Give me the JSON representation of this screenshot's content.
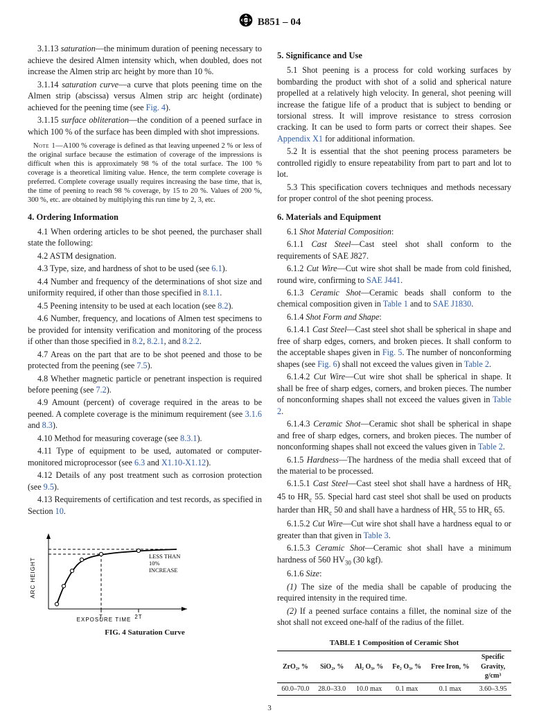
{
  "header": {
    "designation": "B851 – 04"
  },
  "left": {
    "p_3_1_13": {
      "num": "3.1.13 ",
      "term": "saturation",
      "body": "—the minimum duration of peening necessary to achieve the desired Almen intensity which, when doubled, does not increase the Almen strip arc height by more than 10 %."
    },
    "p_3_1_14": {
      "num": "3.1.14 ",
      "term": "saturation curve",
      "body": "—a curve that plots peening time on the Almen strip (abscissa) versus Almen strip arc height (ordinate) achieved for the peening time (see ",
      "link": "Fig. 4",
      "tail": ")."
    },
    "p_3_1_15": {
      "num": "3.1.15 ",
      "term": "surface obliteration",
      "body": "—the condition of a peened surface in which 100 % of the surface has been dimpled with shot impressions."
    },
    "note1": {
      "label": "Note 1—",
      "body": "A100 % coverage is defined as that leaving unpeened 2 % or less of the original surface because the estimation of coverage of the impressions is difficult when this is approximately 98 % of the total surface. The 100 % coverage is a theoretical limiting value. Hence, the term complete coverage is preferred. Complete coverage usually requires increasing the base time, that is, the time of peening to reach 98 % coverage, by 15 to 20 %. Values of 200 %, 300 %, etc. are obtained by multiplying this run time by 2, 3, etc."
    },
    "h4": "4.  Ordering Information",
    "p4_1": "4.1 When ordering articles to be shot peened, the purchaser shall state the following:",
    "p4_2": "4.2 ASTM designation.",
    "p4_3": {
      "a": "4.3 Type, size, and hardness of shot to be used (see ",
      "l": "6.1",
      "b": ")."
    },
    "p4_4": {
      "a": "4.4 Number and frequency of the determinations of shot size and uniformity required, if other than those specified in ",
      "l": "8.1.1",
      "b": "."
    },
    "p4_5": {
      "a": "4.5 Peening intensity to be used at each location (see ",
      "l": "8.2",
      "b": ")."
    },
    "p4_6": {
      "a": "4.6 Number, frequency, and locations of Almen test specimens to be provided for intensity verification and monitoring of the process if other than those specified in ",
      "l1": "8.2",
      "c1": ", ",
      "l2": "8.2.1",
      "c2": ", and ",
      "l3": "8.2.2",
      "b": "."
    },
    "p4_7": {
      "a": "4.7 Areas on the part that are to be shot peened and those to be protected from the peening (see ",
      "l": "7.5",
      "b": ")."
    },
    "p4_8": {
      "a": "4.8 Whether magnetic particle or penetrant inspection is required before peening (see ",
      "l": "7.2",
      "b": ")."
    },
    "p4_9": {
      "a": "4.9 Amount (percent) of coverage required in the areas to be peened. A complete coverage is the minimum requirement (see ",
      "l1": "3.1.6",
      "c": " and ",
      "l2": "8.3",
      "b": ")."
    },
    "p4_10": {
      "a": "4.10 Method for measuring coverage (see ",
      "l": "8.3.1",
      "b": ")."
    },
    "p4_11": {
      "a": "4.11 Type of equipment to be used, automated or computer-monitored microprocessor (see ",
      "l1": "6.3",
      "c": " and ",
      "l2": "X1.10-X1.12",
      "b": ")."
    },
    "p4_12": {
      "a": "4.12 Details of any post treatment such as corrosion protection (see ",
      "l": "9.5",
      "b": ")."
    },
    "p4_13": {
      "a": "4.13 Requirements of certification and test records, as specified in Section ",
      "l": "10",
      "b": "."
    },
    "fig": {
      "y_label": "ARC HEIGHT",
      "x_label": "EXPOSURE TIME",
      "tick_T": "T",
      "tick_2T": "2T",
      "annot": "LESS THAN\n10%\nINCREASE",
      "caption": "FIG. 4 Saturation Curve",
      "curve_color": "#000000",
      "bg": "#ffffff",
      "points_x": [
        12,
        22,
        34,
        48,
        76,
        130,
        185
      ],
      "points_y": [
        98,
        72,
        50,
        34,
        26,
        21,
        19
      ]
    }
  },
  "right": {
    "h5": "5.  Significance and Use",
    "p5_1": {
      "a": "5.1 Shot peening is a process for cold working surfaces by bombarding the product with shot of a solid and spherical nature propelled at a relatively high velocity. In general, shot peening will increase the fatigue life of a product that is subject to bending or torsional stress. It will improve resistance to stress corrosion cracking. It can be used to form parts or correct their shapes. See ",
      "l": "Appendix X1",
      "b": " for additional information."
    },
    "p5_2": "5.2 It is essential that the shot peening process parameters be controlled rigidly to ensure repeatability from part to part and lot to lot.",
    "p5_3": "5.3 This specification covers techniques and methods necessary for proper control of the shot peening process.",
    "h6": "6.  Materials and Equipment",
    "p6_1": {
      "num": "6.1 ",
      "term": "Shot Material Composition",
      "tail": ":"
    },
    "p6_1_1": {
      "num": "6.1.1 ",
      "term": "Cast Steel",
      "body": "—Cast steel shot shall conform to the requirements of SAE J827."
    },
    "p6_1_2": {
      "num": "6.1.2 ",
      "term": "Cut Wire",
      "body": "—Cut wire shot shall be made from cold finished, round wire, confirming to ",
      "l": "SAE J441",
      "tail": "."
    },
    "p6_1_3": {
      "num": "6.1.3 ",
      "term": "Ceramic Shot",
      "body": "—Ceramic beads shall conform to the chemical composition given in ",
      "l1": "Table 1",
      "c": " and to ",
      "l2": "SAE J1830",
      "tail": "."
    },
    "p6_1_4": {
      "num": "6.1.4 ",
      "term": "Shot Form and Shape",
      "tail": ":"
    },
    "p6_1_4_1": {
      "num": "6.1.4.1 ",
      "term": "Cast Steel",
      "body": "—Cast steel shot shall be spherical in shape and free of sharp edges, corners, and broken pieces. It shall conform to the acceptable shapes given in ",
      "l1": "Fig. 5",
      "c1": ". The number of nonconforming shapes (see ",
      "l2": "Fig. 6",
      "c2": ") shall not exceed the values given in ",
      "l3": "Table 2",
      "tail": "."
    },
    "p6_1_4_2": {
      "num": "6.1.4.2 ",
      "term": "Cut Wire",
      "body": "—Cut wire shot shall be spherical in shape. It shall be free of sharp edges, corners, and broken pieces. The number of nonconforming shapes shall not exceed the values given in ",
      "l": "Table 2",
      "tail": "."
    },
    "p6_1_4_3": {
      "num": "6.1.4.3 ",
      "term": "Ceramic Shot",
      "body": "—Ceramic shot shall be spherical in shape and free of sharp edges, corners, and broken pieces. The number of nonconforming shapes shall not exceed the values given in ",
      "l": "Table 2",
      "tail": "."
    },
    "p6_1_5": {
      "num": "6.1.5 ",
      "term": "Hardness",
      "body": "—The hardness of the media shall exceed that of the material to be processed."
    },
    "p6_1_5_1": {
      "num": "6.1.5.1 ",
      "term": "Cast Steel",
      "body_a": "—Cast steel shot shall have a hardness of HR",
      "sub1": "c",
      "body_b": " 45 to HR",
      "sub2": "c",
      "body_c": " 55. Special hard cast steel shot shall be used on products harder than HR",
      "sub3": "c",
      "body_d": " 50 and shall have a hardness of HR",
      "sub4": "c",
      "body_e": " 55 to HR",
      "sub5": "c",
      "body_f": " 65."
    },
    "p6_1_5_2": {
      "num": "6.1.5.2 ",
      "term": "Cut Wire",
      "body": "—Cut wire shot shall have a hardness equal to or greater than that given in ",
      "l": "Table 3",
      "tail": "."
    },
    "p6_1_5_3": {
      "num": "6.1.5.3 ",
      "term": "Ceramic Shot",
      "body_a": "—Ceramic shot shall have a minimum hardness of 560 HV",
      "sub": "30",
      "body_b": " (30 kgf)."
    },
    "p6_1_6": {
      "num": "6.1.6 ",
      "term": "Size",
      "tail": ":"
    },
    "p6_1_6_i": {
      "num": "(1) ",
      "body": "The size of the media shall be capable of producing the required intensity in the required time."
    },
    "p6_1_6_ii": {
      "num": "(2) ",
      "body": "If a peened surface contains a fillet, the nominal size of the shot shall not exceed one-half of the radius of the fillet."
    },
    "table1": {
      "title": "TABLE 1  Composition of Ceramic Shot",
      "headers": [
        "ZrO₂, %",
        "SiO₂, %",
        "Al₂ O₃, %",
        "Fe₂ O₃, %",
        "Free Iron, %",
        "Specific Gravity, g/cm³"
      ],
      "row": [
        "60.0–70.0",
        "28.0–33.0",
        "10.0 max",
        "0.1 max",
        "0.1 max",
        "3.60–3.95"
      ]
    }
  },
  "page_num": "3"
}
